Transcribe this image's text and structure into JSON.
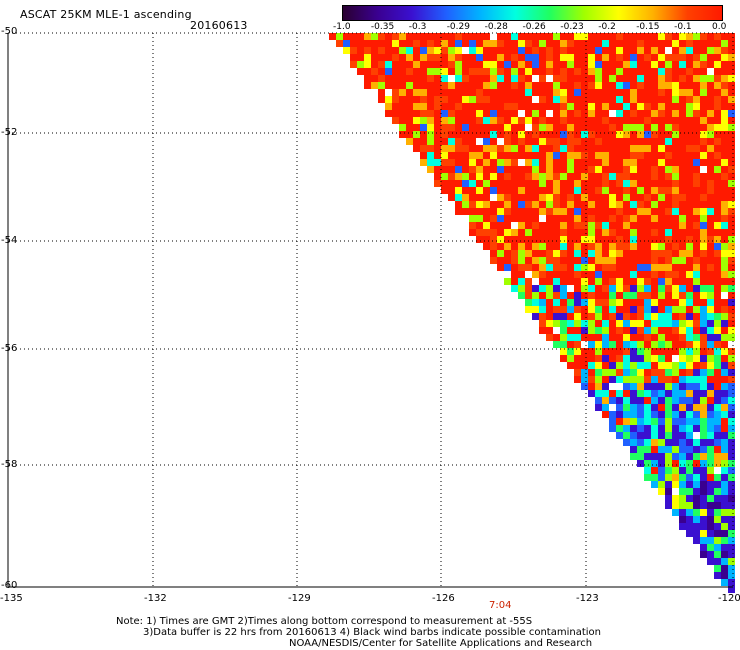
{
  "header": {
    "title": "ASCAT 25KM MLE-1 ascending",
    "date": "20160613"
  },
  "colorbar": {
    "labels": [
      "-1.0",
      "-0.35",
      "-0.3",
      "-0.29",
      "-0.28",
      "-0.26",
      "-0.23",
      "-0.2",
      "-0.15",
      "-0.1",
      "0.0"
    ],
    "stops": [
      "#2a0030",
      "#3a0090",
      "#3a10d0",
      "#2060ff",
      "#00b4ff",
      "#00ffe0",
      "#20ff60",
      "#a0ff00",
      "#ffff00",
      "#ffb000",
      "#ff4000",
      "#ff1a00"
    ]
  },
  "axes": {
    "lat_labels": [
      "-50",
      "-52",
      "-54",
      "-56",
      "-58",
      "-60"
    ],
    "lon_labels": [
      "-135",
      "-132",
      "-129",
      "-126",
      "-123",
      "-120"
    ],
    "time_label": "7:04"
  },
  "notes": {
    "line1": "Note: 1) Times are GMT 2)Times along bottom correspond to measurement at -55S",
    "line2": "3)Data buffer is 22 hrs from 20160613 4) Black wind barbs indicate possible contamination",
    "line3": "NOAA/NESDIS/Center for Satellite Applications and Research"
  }
}
